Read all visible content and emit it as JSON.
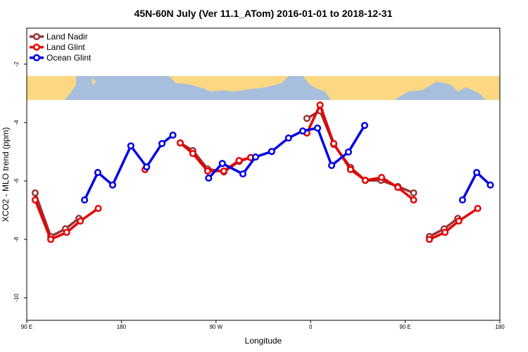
{
  "chart_data": {
    "type": "line",
    "title": "45N-60N July (Ver 11.1_ATom)   2016-01-01 to 2018-12-31",
    "xlabel": "Longitude",
    "ylabel": "XCO2 - MLO trend (ppm)",
    "xlim": [
      90,
      540
    ],
    "ylim": [
      -10.77,
      -0.77
    ],
    "xticks": [
      {
        "value": 90,
        "label": "90 E"
      },
      180,
      {
        "value": 270,
        "label": "90 W"
      },
      {
        "value": 360,
        "label": "0"
      },
      {
        "value": 450,
        "label": "90 E"
      },
      {
        "value": 540,
        "label": "180"
      }
    ],
    "yticks": [
      -2,
      -4,
      -6,
      -8,
      -10
    ],
    "legend": "top-left",
    "series": [
      {
        "name": "Land Nadir",
        "color": "#993333",
        "x": [
          98,
          112.8,
          126.8,
          139.6,
          null,
          236,
          248,
          262,
          277.5,
          292,
          303,
          null,
          356.5,
          369,
          382,
          398,
          412,
          427,
          443,
          458,
          null,
          473,
          487,
          500
        ],
        "values": [
          -6.41,
          -7.9,
          -7.64,
          -7.28,
          null,
          -4.7,
          -4.96,
          -5.59,
          -5.69,
          -5.33,
          -5.2,
          null,
          -3.86,
          -3.6,
          -4.75,
          -5.54,
          -5.98,
          -5.98,
          -6.19,
          -6.41,
          null,
          -7.9,
          -7.64,
          -7.28
        ]
      },
      {
        "name": "Land Glint",
        "color": "#e60000",
        "x": [
          98,
          112.8,
          128,
          141,
          158,
          null,
          202.5,
          null,
          236,
          248,
          262,
          277.5,
          292,
          303,
          null,
          356.5,
          369,
          382,
          398,
          412,
          427.5,
          443,
          458,
          null,
          473,
          487.8,
          501,
          519
        ],
        "values": [
          -6.65,
          -8.0,
          -7.76,
          -7.37,
          -6.94,
          null,
          -5.61,
          null,
          -4.7,
          -5.06,
          -5.66,
          -5.66,
          -5.3,
          -5.2,
          null,
          -4.36,
          -3.4,
          -4.72,
          -5.61,
          -5.98,
          -5.88,
          -6.22,
          -6.65,
          null,
          -8.0,
          -7.76,
          -7.37,
          -6.94
        ]
      },
      {
        "name": "Ocean Glint",
        "color": "#0000e6",
        "x": [
          145,
          157.6,
          171.7,
          189,
          204,
          218.6,
          229,
          null,
          263,
          276,
          295.6,
          307.6,
          323,
          339,
          352.5,
          366.6,
          380,
          396,
          411.4,
          null,
          504.5,
          518,
          531
        ],
        "values": [
          -6.65,
          -5.71,
          -6.14,
          -4.8,
          -5.52,
          -4.72,
          -4.43,
          null,
          -5.9,
          -5.4,
          -5.76,
          -5.18,
          -4.99,
          -4.53,
          -4.29,
          -4.19,
          -5.47,
          -5.01,
          -4.1,
          null,
          -6.65,
          -5.71,
          -6.14
        ]
      }
    ]
  }
}
